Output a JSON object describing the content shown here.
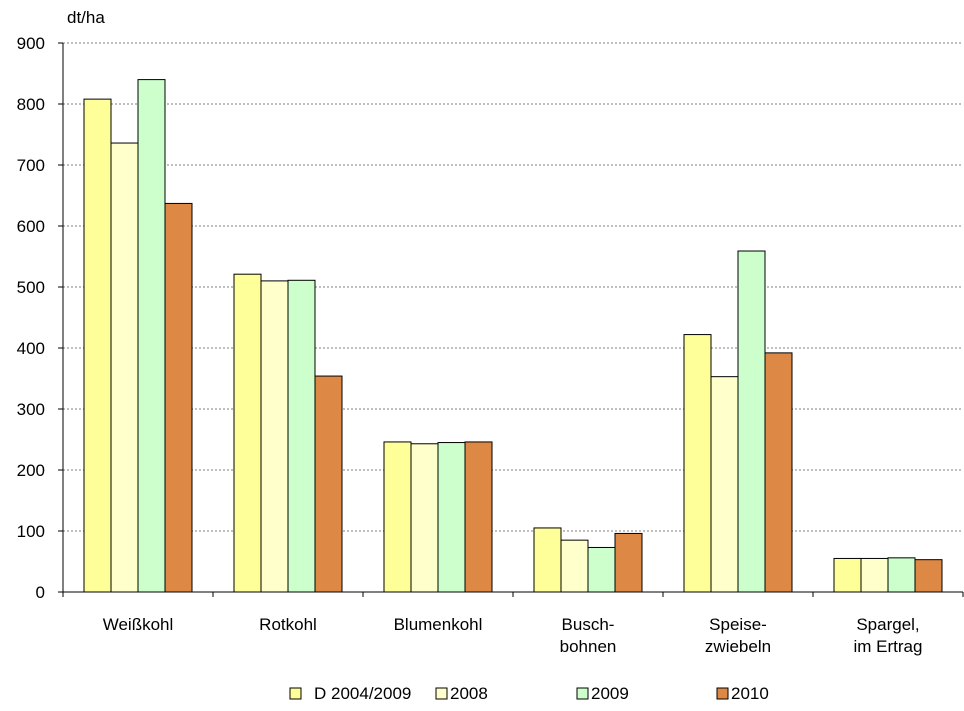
{
  "chart_data": {
    "type": "bar",
    "ylabel": "dt/ha",
    "ylim": [
      0,
      900
    ],
    "yticks": [
      0,
      100,
      200,
      300,
      400,
      500,
      600,
      700,
      800,
      900
    ],
    "grid": true,
    "legend_position": "bottom",
    "categories": [
      [
        "Weißkohl"
      ],
      [
        "Rotkohl"
      ],
      [
        "Blumenkohl"
      ],
      [
        "Busch-",
        "bohnen"
      ],
      [
        "Speise-",
        "zwiebeln"
      ],
      [
        "Spargel,",
        "im Ertrag"
      ]
    ],
    "series": [
      {
        "name": "D 2004/2009",
        "color": "#FFFF99",
        "values": [
          808,
          521,
          246,
          105,
          422,
          55
        ]
      },
      {
        "name": "2008",
        "color": "#FFFFCC",
        "values": [
          736,
          510,
          243,
          85,
          353,
          55
        ]
      },
      {
        "name": "2009",
        "color": "#CCFFCC",
        "values": [
          840,
          511,
          245,
          73,
          559,
          56
        ]
      },
      {
        "name": "2010",
        "color": "#DD8844",
        "values": [
          637,
          354,
          246,
          96,
          392,
          53
        ]
      }
    ]
  }
}
